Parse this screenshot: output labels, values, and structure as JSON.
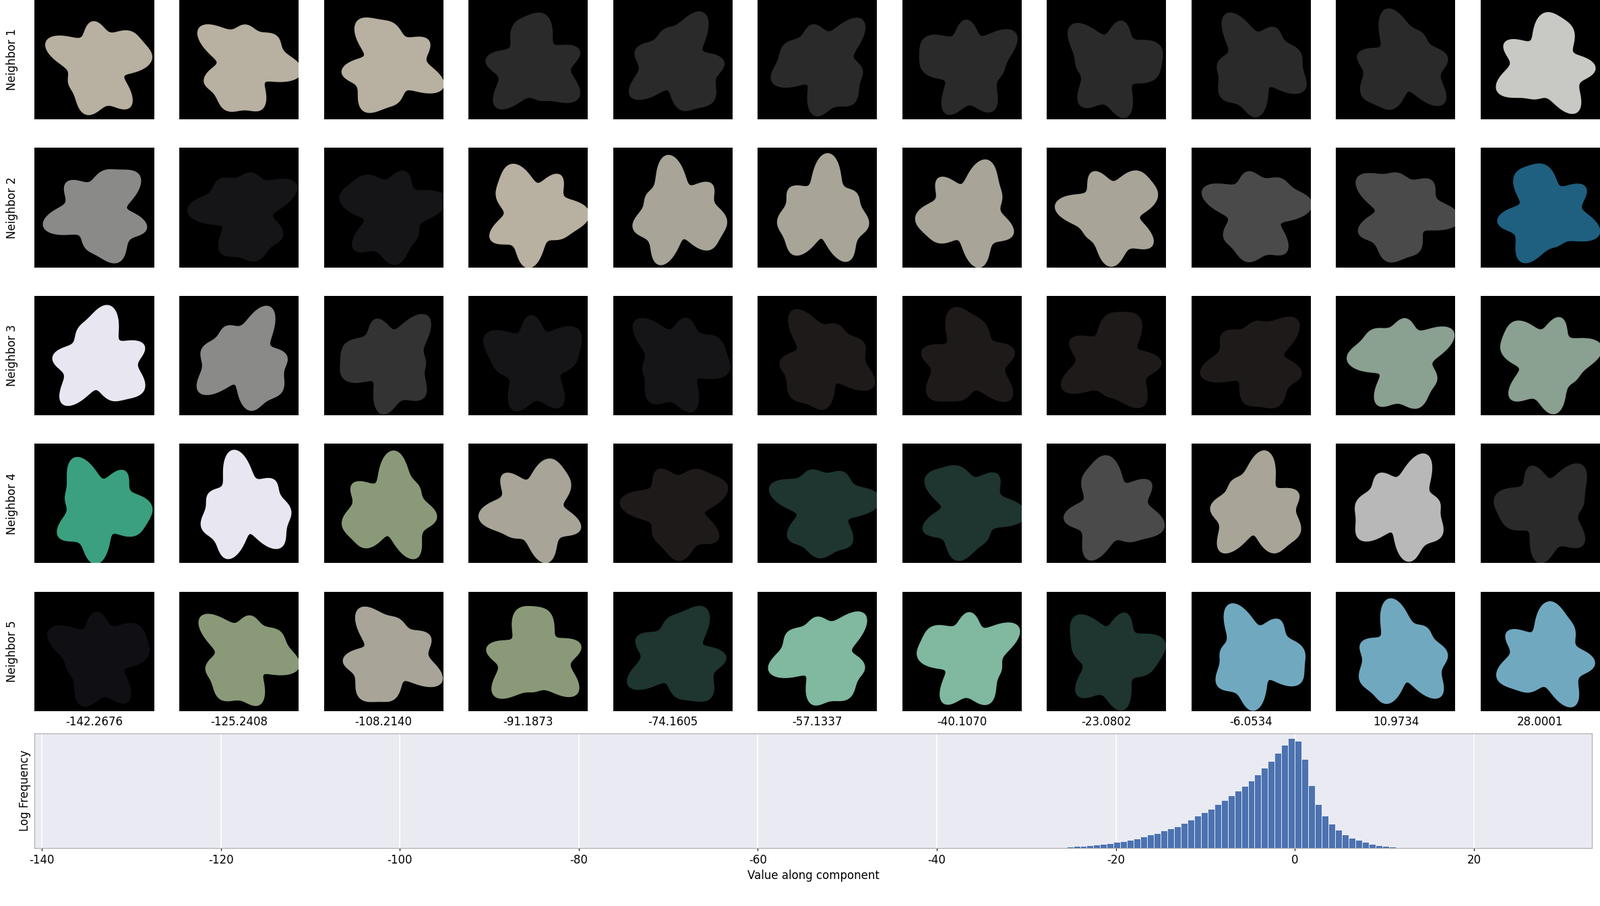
{
  "image_grid": {
    "row_labels": [
      "Neighbor 1",
      "Neighbor 2",
      "Neighbor 3",
      "Neighbor 4",
      "Neighbor 5"
    ],
    "column_labels": [
      "-142.2676",
      "-125.2408",
      "-108.2140",
      "-91.1873",
      "-74.1605",
      "-57.1337",
      "-40.1070",
      "-23.0802",
      "-6.0534",
      "10.9734",
      "28.0001"
    ]
  },
  "chart_data": {
    "type": "bar",
    "xlabel": "Value along component",
    "ylabel": "Log Frequency",
    "bins": [
      -25.5,
      -24.75,
      -24,
      -23.25,
      -22.5,
      -21.75,
      -21,
      -20.25,
      -19.5,
      -18.75,
      -18,
      -17.25,
      -16.5,
      -15.75,
      -15,
      -14.25,
      -13.5,
      -12.75,
      -12,
      -11.25,
      -10.5,
      -9.75,
      -9,
      -8.25,
      -7.5,
      -6.75,
      -6,
      -5.25,
      -4.5,
      -3.75,
      -3,
      -2.25,
      -1.5,
      -0.75,
      0,
      0.75,
      1.5,
      2.25,
      3,
      3.75,
      4.5,
      5.25,
      6,
      6.75,
      7.5,
      8.25,
      9,
      9.75,
      10.5,
      11.25
    ],
    "values": [
      1,
      1.5,
      2,
      2.5,
      3,
      3.5,
      4,
      5,
      6,
      7,
      8.5,
      10,
      11.5,
      13,
      15,
      17,
      19,
      22,
      25,
      28,
      31,
      34,
      38,
      42,
      46,
      50,
      54,
      59,
      64,
      70,
      76,
      83,
      90,
      96,
      94,
      78,
      55,
      38,
      28,
      21,
      16,
      12,
      9,
      7,
      5,
      3.5,
      2.5,
      1.5,
      1
    ],
    "color": "#4c72b0",
    "xlim": [
      -140.8,
      33.2
    ],
    "xticks": [
      -140,
      -120,
      -100,
      -80,
      -60,
      -40,
      -20,
      0,
      20
    ],
    "ylim": [
      0,
      100
    ],
    "grid": true,
    "tick_labels": "x"
  }
}
